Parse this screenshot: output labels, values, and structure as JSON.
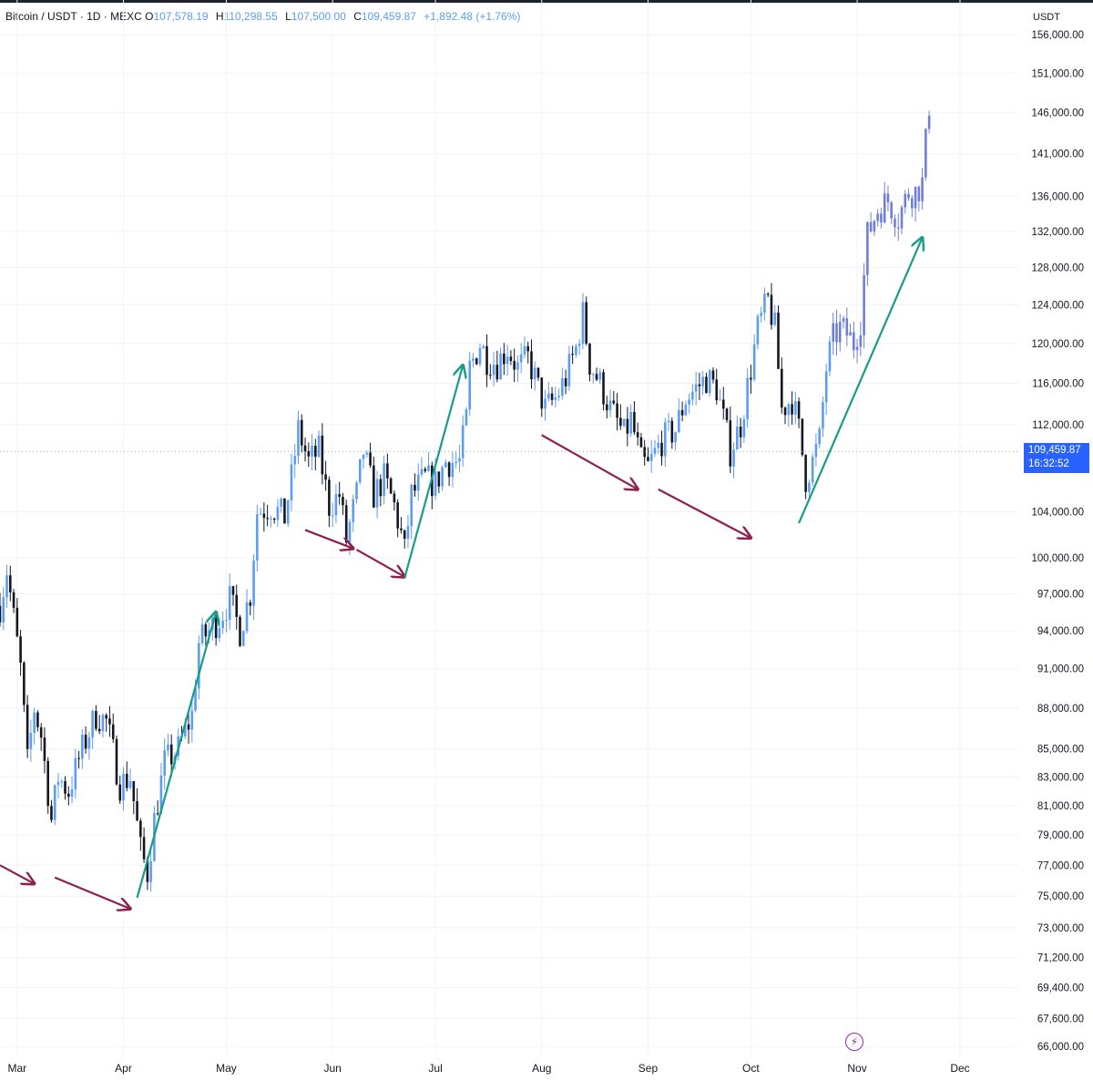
{
  "legend": {
    "symbol": "Bitcoin / USDT · 1D · MEXC",
    "open_label": "O",
    "open": "107,578.19",
    "high_label": "H",
    "high": "110,298.55",
    "low_label": "L",
    "low": "107,500.00",
    "close_label": "C",
    "close": "109,459.87",
    "change": "+1,892.48 (+1.76%)"
  },
  "currency": "USDT",
  "last_price": {
    "value": "109,459.87",
    "countdown": "16:32:52"
  },
  "colors": {
    "candle_up": "#5b9cf6",
    "candle_down": "#131722",
    "projection": "#6f7fd8",
    "arrow_up": "#179c86",
    "arrow_down": "#8e1f4e",
    "price_tag": "#2962ff",
    "event_icon": "#9c27b0"
  },
  "event_icon": "lightning-icon",
  "chart_data": {
    "type": "candlestick",
    "scale": "log",
    "ylim": [
      65500,
      157000
    ],
    "y_ticks": [
      {
        "value": 156000,
        "label": "156,000.00"
      },
      {
        "value": 151000,
        "label": "151,000.00"
      },
      {
        "value": 146000,
        "label": "146,000.00"
      },
      {
        "value": 141000,
        "label": "141,000.00"
      },
      {
        "value": 136000,
        "label": "136,000.00"
      },
      {
        "value": 132000,
        "label": "132,000.00"
      },
      {
        "value": 128000,
        "label": "128,000.00"
      },
      {
        "value": 124000,
        "label": "124,000.00"
      },
      {
        "value": 120000,
        "label": "120,000.00"
      },
      {
        "value": 116000,
        "label": "116,000.00"
      },
      {
        "value": 112000,
        "label": "112,000.00"
      },
      {
        "value": 104000,
        "label": "104,000.00"
      },
      {
        "value": 100000,
        "label": "100,000.00"
      },
      {
        "value": 97000,
        "label": "97,000.00"
      },
      {
        "value": 94000,
        "label": "94,000.00"
      },
      {
        "value": 91000,
        "label": "91,000.00"
      },
      {
        "value": 88000,
        "label": "88,000.00"
      },
      {
        "value": 85000,
        "label": "85,000.00"
      },
      {
        "value": 83000,
        "label": "83,000.00"
      },
      {
        "value": 81000,
        "label": "81,000.00"
      },
      {
        "value": 79000,
        "label": "79,000.00"
      },
      {
        "value": 77000,
        "label": "77,000.00"
      },
      {
        "value": 75000,
        "label": "75,000.00"
      },
      {
        "value": 73000,
        "label": "73,000.00"
      },
      {
        "value": 71200,
        "label": "71,200.00"
      },
      {
        "value": 69400,
        "label": "69,400.00"
      },
      {
        "value": 67600,
        "label": "67,600.00"
      },
      {
        "value": 66000,
        "label": "66,000.00"
      }
    ],
    "x_ticks": [
      {
        "date": "2025-03-01",
        "label": "Mar"
      },
      {
        "date": "2025-04-01",
        "label": "Apr"
      },
      {
        "date": "2025-05-01",
        "label": "May"
      },
      {
        "date": "2025-06-01",
        "label": "Jun"
      },
      {
        "date": "2025-07-01",
        "label": "Jul"
      },
      {
        "date": "2025-08-01",
        "label": "Aug"
      },
      {
        "date": "2025-09-01",
        "label": "Sep"
      },
      {
        "date": "2025-10-01",
        "label": "Oct"
      },
      {
        "date": "2025-11-01",
        "label": "Nov"
      },
      {
        "date": "2025-12-01",
        "label": "Dec"
      }
    ],
    "xlim": [
      "2025-02-24",
      "2025-12-18"
    ],
    "last_price": 109459.87,
    "path": [
      [
        "2025-02-24",
        96000
      ],
      [
        "2025-02-26",
        99000
      ],
      [
        "2025-02-28",
        95000
      ],
      [
        "2025-03-02",
        91000
      ],
      [
        "2025-03-04",
        84000
      ],
      [
        "2025-03-06",
        88000
      ],
      [
        "2025-03-08",
        86000
      ],
      [
        "2025-03-11",
        80000
      ],
      [
        "2025-03-13",
        83000
      ],
      [
        "2025-03-16",
        82000
      ],
      [
        "2025-03-20",
        85000
      ],
      [
        "2025-03-24",
        87500
      ],
      [
        "2025-03-27",
        87000
      ],
      [
        "2025-03-31",
        82500
      ],
      [
        "2025-04-03",
        83000
      ],
      [
        "2025-04-06",
        78000
      ],
      [
        "2025-04-08",
        76500
      ],
      [
        "2025-04-10",
        80000
      ],
      [
        "2025-04-13",
        84000
      ],
      [
        "2025-04-17",
        85000
      ],
      [
        "2025-04-21",
        87500
      ],
      [
        "2025-04-23",
        93000
      ],
      [
        "2025-04-26",
        94000
      ],
      [
        "2025-04-29",
        95000
      ],
      [
        "2025-05-02",
        96500
      ],
      [
        "2025-05-05",
        94000
      ],
      [
        "2025-05-08",
        97000
      ],
      [
        "2025-05-10",
        104000
      ],
      [
        "2025-05-14",
        104500
      ],
      [
        "2025-05-18",
        103500
      ],
      [
        "2025-05-20",
        107000
      ],
      [
        "2025-05-22",
        111500
      ],
      [
        "2025-05-25",
        108500
      ],
      [
        "2025-05-28",
        109500
      ],
      [
        "2025-05-31",
        104500
      ],
      [
        "2025-06-03",
        105500
      ],
      [
        "2025-06-05",
        101500
      ],
      [
        "2025-06-08",
        105500
      ],
      [
        "2025-06-10",
        109500
      ],
      [
        "2025-06-13",
        105500
      ],
      [
        "2025-06-16",
        107000
      ],
      [
        "2025-06-19",
        104500
      ],
      [
        "2025-06-21",
        102000
      ],
      [
        "2025-06-22",
        100500
      ],
      [
        "2025-06-24",
        105500
      ],
      [
        "2025-06-28",
        107000
      ],
      [
        "2025-07-01",
        106500
      ],
      [
        "2025-07-04",
        108500
      ],
      [
        "2025-07-08",
        108500
      ],
      [
        "2025-07-10",
        112500
      ],
      [
        "2025-07-11",
        117500
      ],
      [
        "2025-07-14",
        120000
      ],
      [
        "2025-07-16",
        118500
      ],
      [
        "2025-07-19",
        118000
      ],
      [
        "2025-07-22",
        119500
      ],
      [
        "2025-07-25",
        117500
      ],
      [
        "2025-07-28",
        118500
      ],
      [
        "2025-07-31",
        115500
      ],
      [
        "2025-08-02",
        113500
      ],
      [
        "2025-08-05",
        114500
      ],
      [
        "2025-08-08",
        116500
      ],
      [
        "2025-08-11",
        119500
      ],
      [
        "2025-08-13",
        123000
      ],
      [
        "2025-08-15",
        118000
      ],
      [
        "2025-08-18",
        116000
      ],
      [
        "2025-08-21",
        113500
      ],
      [
        "2025-08-25",
        111000
      ],
      [
        "2025-08-27",
        112500
      ],
      [
        "2025-08-30",
        108500
      ],
      [
        "2025-09-01",
        108000
      ],
      [
        "2025-09-05",
        110500
      ],
      [
        "2025-09-09",
        111500
      ],
      [
        "2025-09-12",
        114500
      ],
      [
        "2025-09-15",
        115500
      ],
      [
        "2025-09-18",
        116500
      ],
      [
        "2025-09-21",
        115500
      ],
      [
        "2025-09-23",
        112500
      ],
      [
        "2025-09-25",
        109500
      ],
      [
        "2025-09-28",
        112000
      ],
      [
        "2025-10-01",
        117500
      ],
      [
        "2025-10-03",
        121500
      ],
      [
        "2025-10-06",
        124500
      ],
      [
        "2025-10-08",
        121500
      ],
      [
        "2025-10-10",
        113500
      ],
      [
        "2025-10-13",
        114500
      ],
      [
        "2025-10-15",
        111500
      ],
      [
        "2025-10-17",
        107000
      ],
      [
        "2025-10-19",
        108500
      ],
      [
        "2025-10-21",
        110500
      ],
      [
        "2025-10-23",
        117500
      ],
      [
        "2025-10-25",
        120500
      ],
      [
        "2025-10-27",
        121500
      ],
      [
        "2025-10-29",
        121000
      ],
      [
        "2025-10-31",
        120000
      ],
      [
        "2025-11-02",
        122500
      ],
      [
        "2025-11-04",
        131500
      ],
      [
        "2025-11-07",
        134500
      ],
      [
        "2025-11-10",
        135500
      ],
      [
        "2025-11-13",
        133500
      ],
      [
        "2025-11-16",
        136500
      ],
      [
        "2025-11-18",
        136500
      ],
      [
        "2025-11-20",
        137500
      ],
      [
        "2025-11-22",
        147000
      ]
    ],
    "projection_start": "2025-10-25",
    "annotations": [
      {
        "kind": "down",
        "from": [
          "2025-02-24",
          77000
        ],
        "to": [
          "2025-03-06",
          75800
        ]
      },
      {
        "kind": "down",
        "from": [
          "2025-03-12",
          76200
        ],
        "to": [
          "2025-04-03",
          74200
        ]
      },
      {
        "kind": "up",
        "from": [
          "2025-04-05",
          74900
        ],
        "to": [
          "2025-04-28",
          95500
        ]
      },
      {
        "kind": "down",
        "from": [
          "2025-05-24",
          102400
        ],
        "to": [
          "2025-06-07",
          100800
        ]
      },
      {
        "kind": "down",
        "from": [
          "2025-06-08",
          100700
        ],
        "to": [
          "2025-06-22",
          98400
        ]
      },
      {
        "kind": "up",
        "from": [
          "2025-06-22",
          98300
        ],
        "to": [
          "2025-07-09",
          117800
        ]
      },
      {
        "kind": "down",
        "from": [
          "2025-08-01",
          111000
        ],
        "to": [
          "2025-08-29",
          106000
        ]
      },
      {
        "kind": "down",
        "from": [
          "2025-09-04",
          106000
        ],
        "to": [
          "2025-10-01",
          101700
        ]
      },
      {
        "kind": "up",
        "from": [
          "2025-10-15",
          103000
        ],
        "to": [
          "2025-11-20",
          131300
        ]
      }
    ]
  }
}
